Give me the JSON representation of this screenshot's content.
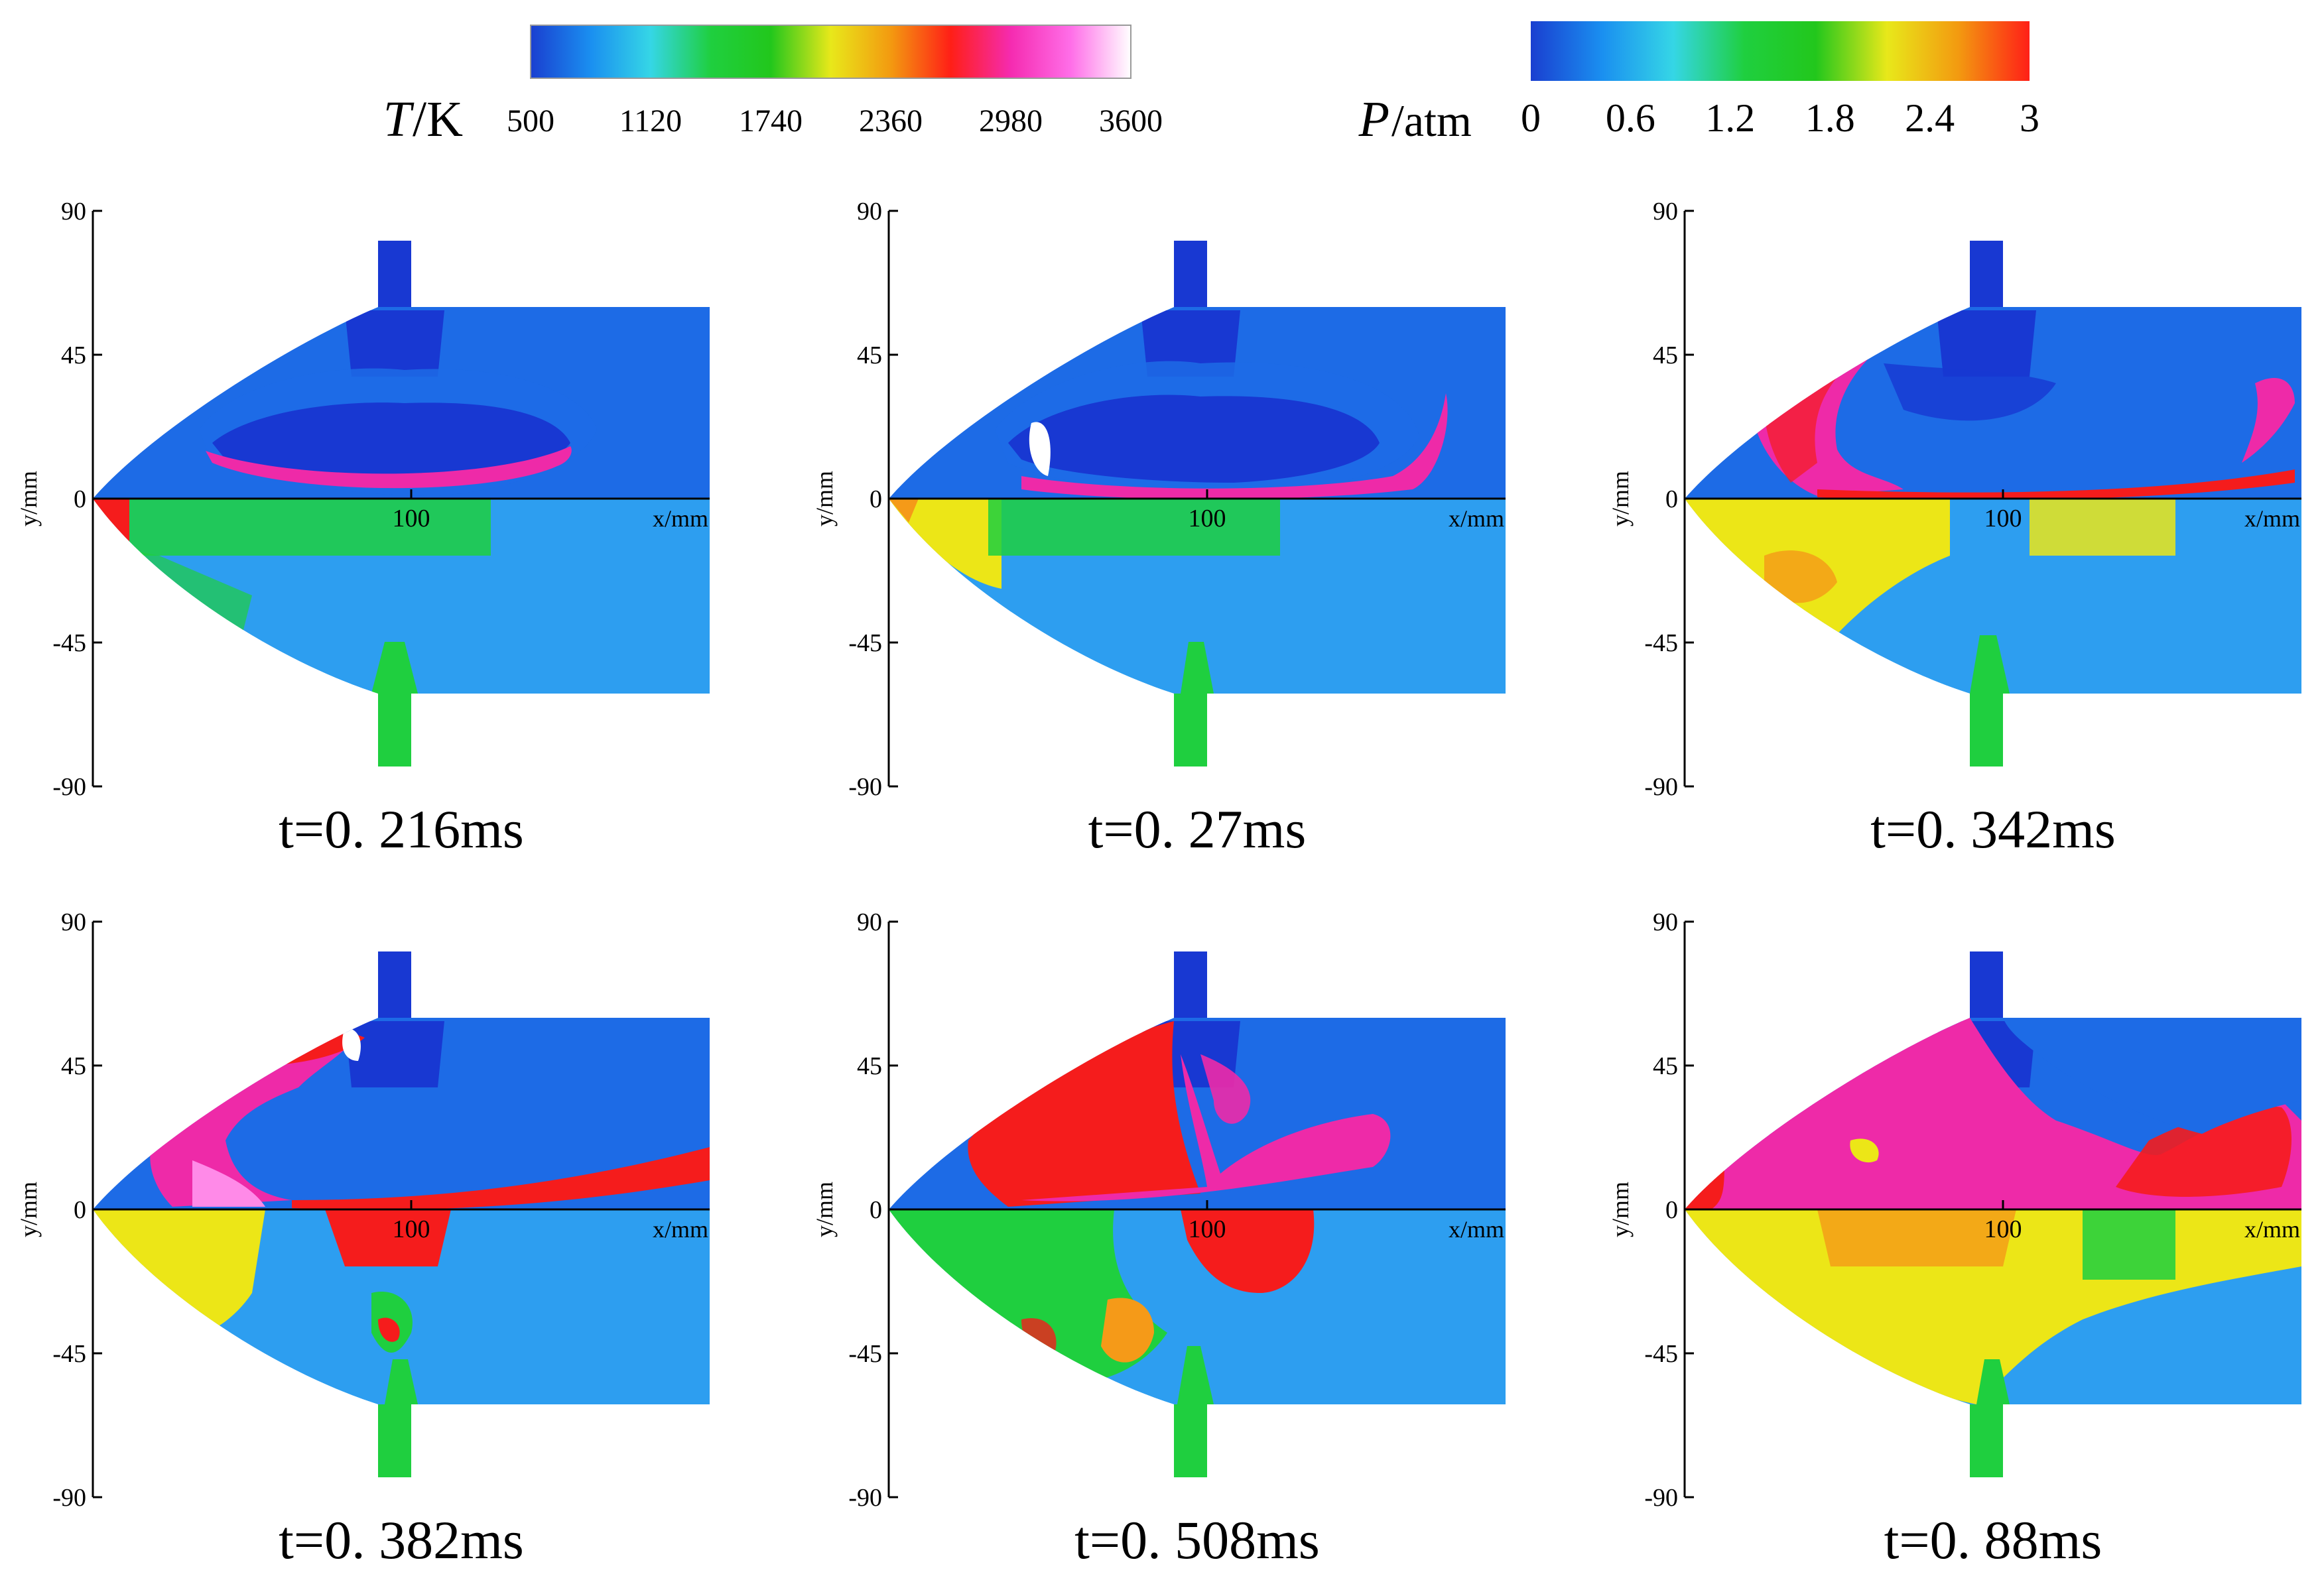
{
  "legends": {
    "temperature": {
      "symbol": "T",
      "unit": "/K",
      "ticks": [
        "500",
        "1120",
        "1740",
        "2360",
        "2980",
        "3600"
      ],
      "colors": [
        "#1a3fd0",
        "#1a8ff0",
        "#35d6e6",
        "#1fcf3f",
        "#22c71c",
        "#e8e81a",
        "#f39a10",
        "#ff1f17",
        "#f52bb0",
        "#ff6ee8",
        "#ffffff"
      ]
    },
    "pressure": {
      "symbol": "P",
      "unit": "/atm",
      "ticks": [
        "0",
        "0.6",
        "1.2",
        "1.8",
        "2.4",
        "3"
      ],
      "colors": [
        "#1a3fd0",
        "#1a8ff0",
        "#35d6e6",
        "#1fcf3f",
        "#22c71c",
        "#e8e81a",
        "#f39a10",
        "#ff1f17"
      ]
    }
  },
  "axes": {
    "ylabel": "y/mm",
    "xlabel": "x/mm",
    "yticks": [
      "90",
      "45",
      "0",
      "-45",
      "-90"
    ],
    "xtick": "100"
  },
  "chart_data": [
    {
      "type": "heatmap",
      "time": "t=0. 216ms",
      "upper": "temperature",
      "lower": "pressure",
      "yticks": [
        90,
        45,
        0,
        -45,
        -90
      ],
      "xtick": 100
    },
    {
      "type": "heatmap",
      "time": "t=0. 27ms",
      "upper": "temperature",
      "lower": "pressure",
      "yticks": [
        90,
        45,
        0,
        -45,
        -90
      ],
      "xtick": 100
    },
    {
      "type": "heatmap",
      "time": "t=0. 342ms",
      "upper": "temperature",
      "lower": "pressure",
      "yticks": [
        90,
        45,
        0,
        -45,
        -90
      ],
      "xtick": 100
    },
    {
      "type": "heatmap",
      "time": "t=0. 382ms",
      "upper": "temperature",
      "lower": "pressure",
      "yticks": [
        90,
        45,
        0,
        -45,
        -90
      ],
      "xtick": 100
    },
    {
      "type": "heatmap",
      "time": "t=0. 508ms",
      "upper": "temperature",
      "lower": "pressure",
      "yticks": [
        90,
        45,
        0,
        -45,
        -90
      ],
      "xtick": 100
    },
    {
      "type": "heatmap",
      "time": "t=0. 88ms",
      "upper": "temperature",
      "lower": "pressure",
      "yticks": [
        90,
        45,
        0,
        -45,
        -90
      ],
      "xtick": 100
    }
  ]
}
